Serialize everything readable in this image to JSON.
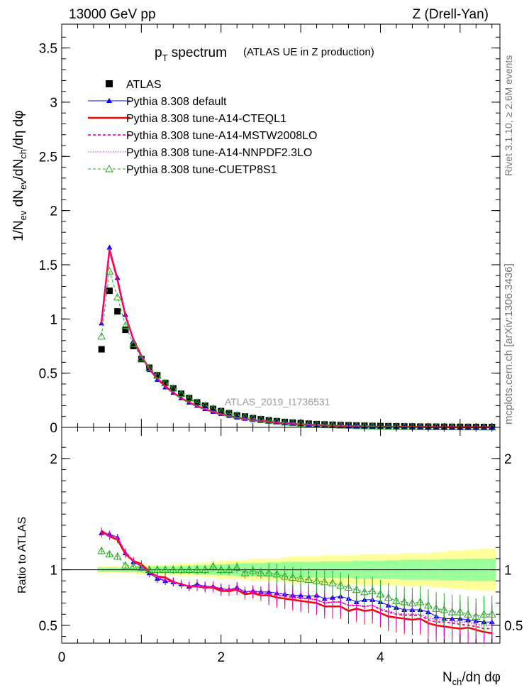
{
  "header": {
    "left": "13000 GeV pp",
    "right": "Z (Drell-Yan)"
  },
  "side_labels": {
    "rivet": "Rivet 3.1.10, ≥ 2.6M events",
    "mcplots": "mcplots.cern.ch [arXiv:1306.3436]"
  },
  "plot_title": {
    "main": "p",
    "sub": "T",
    "rest": " spectrum",
    "detail": "(ATLAS UE in Z production)"
  },
  "watermark": "ATLAS_2019_I1736531",
  "axes": {
    "ylabel_main": "1/N_ev dN_ev/dN_ch/dη dφ",
    "ylabel_ratio": "Ratio to ATLAS",
    "xlabel": "N_ch/dη dφ"
  },
  "legend": [
    {
      "label": "ATLAS",
      "color": "#000000",
      "style": "square"
    },
    {
      "label": "Pythia 8.308 default",
      "color": "#0000ff",
      "style": "triangle-line"
    },
    {
      "label": "Pythia 8.308 tune-A14-CTEQL1",
      "color": "#ff0000",
      "style": "thick-line"
    },
    {
      "label": "Pythia 8.308 tune-A14-MSTW2008LO",
      "color": "#ff00aa",
      "style": "dashed"
    },
    {
      "label": "Pythia 8.308 tune-A14-NNPDF2.3LO",
      "color": "#dd00dd",
      "style": "dotted"
    },
    {
      "label": "Pythia 8.308 tune-CUETP8S1",
      "color": "#22aa22",
      "style": "open-triangle-dashed"
    }
  ],
  "chart_data": [
    {
      "type": "scatter",
      "panel": "main",
      "xlim": [
        0,
        5.5
      ],
      "ylim": [
        0,
        3.72
      ],
      "xticks": [
        "0",
        "2",
        "4"
      ],
      "yticks": [
        "0",
        "0.5",
        "1",
        "1.5",
        "2",
        "2.5",
        "3",
        "3.5"
      ],
      "x": [
        0.5,
        0.6,
        0.7,
        0.8,
        0.9,
        1.0,
        1.1,
        1.2,
        1.3,
        1.4,
        1.5,
        1.6,
        1.7,
        1.8,
        1.9,
        2.0,
        2.1,
        2.2,
        2.3,
        2.4,
        2.5,
        2.6,
        2.7,
        2.8,
        2.9,
        3.0,
        3.1,
        3.2,
        3.3,
        3.4,
        3.5,
        3.6,
        3.7,
        3.8,
        3.9,
        4.0,
        4.1,
        4.2,
        4.3,
        4.4,
        4.5,
        4.6,
        4.7,
        4.8,
        4.9,
        5.0,
        5.1,
        5.2,
        5.3,
        5.4
      ],
      "series": [
        {
          "name": "ATLAS",
          "values": [
            0.72,
            1.26,
            1.07,
            0.9,
            0.75,
            0.63,
            0.55,
            0.48,
            0.41,
            0.36,
            0.31,
            0.27,
            0.23,
            0.2,
            0.17,
            0.15,
            0.13,
            0.11,
            0.1,
            0.085,
            0.075,
            0.065,
            0.057,
            0.05,
            0.044,
            0.039,
            0.034,
            0.03,
            0.027,
            0.024,
            0.021,
            0.019,
            0.017,
            0.015,
            0.013,
            0.012,
            0.011,
            0.01,
            0.009,
            0.008,
            0.007,
            0.0065,
            0.006,
            0.0055,
            0.005,
            0.0045,
            0.004,
            0.0037,
            0.0034,
            0.003
          ]
        },
        {
          "name": "Pythia 8.308 default",
          "values": [
            0.96,
            1.66,
            1.38,
            1.04,
            0.8,
            0.65,
            0.53,
            0.44,
            0.37,
            0.32,
            0.27,
            0.23,
            0.2,
            0.17,
            0.145,
            0.125,
            0.107,
            0.092,
            0.08,
            0.069,
            0.06,
            0.052,
            0.045,
            0.039,
            0.034,
            0.03,
            0.026,
            0.023,
            0.02,
            0.018,
            0.016,
            0.014,
            0.012,
            0.011,
            0.0095,
            0.0085,
            0.0075,
            0.0066,
            0.0058,
            0.0051,
            0.0045,
            0.004,
            0.0035,
            0.0031,
            0.0028,
            0.0025,
            0.0022,
            0.002,
            0.0018,
            0.0016
          ]
        },
        {
          "name": "Pythia 8.308 tune-A14-CTEQL1",
          "values": [
            0.97,
            1.64,
            1.36,
            1.03,
            0.81,
            0.66,
            0.54,
            0.45,
            0.38,
            0.32,
            0.27,
            0.23,
            0.195,
            0.167,
            0.143,
            0.122,
            0.105,
            0.09,
            0.078,
            0.067,
            0.058,
            0.05,
            0.043,
            0.037,
            0.032,
            0.028,
            0.024,
            0.021,
            0.018,
            0.016,
            0.014,
            0.012,
            0.011,
            0.0095,
            0.0083,
            0.0073,
            0.0064,
            0.0057,
            0.005,
            0.0044,
            0.0039,
            0.0034,
            0.003,
            0.0027,
            0.0024,
            0.0021,
            0.0019,
            0.0017,
            0.0015,
            0.0013
          ]
        },
        {
          "name": "Pythia 8.308 tune-A14-MSTW2008LO",
          "values": [
            0.95,
            1.65,
            1.37,
            1.04,
            0.81,
            0.65,
            0.54,
            0.45,
            0.37,
            0.32,
            0.27,
            0.23,
            0.196,
            0.168,
            0.144,
            0.123,
            0.106,
            0.091,
            0.079,
            0.068,
            0.059,
            0.051,
            0.044,
            0.038,
            0.033,
            0.029,
            0.025,
            0.022,
            0.019,
            0.017,
            0.015,
            0.013,
            0.0115,
            0.01,
            0.0088,
            0.0077,
            0.0068,
            0.006,
            0.0053,
            0.0047,
            0.0041,
            0.0036,
            0.0032,
            0.0029,
            0.0026,
            0.0023,
            0.002,
            0.0018,
            0.0016,
            0.0014
          ]
        },
        {
          "name": "Pythia 8.308 tune-A14-NNPDF2.3LO",
          "values": [
            0.96,
            1.66,
            1.38,
            1.04,
            0.8,
            0.65,
            0.54,
            0.45,
            0.37,
            0.32,
            0.27,
            0.23,
            0.197,
            0.169,
            0.145,
            0.124,
            0.107,
            0.092,
            0.08,
            0.069,
            0.06,
            0.052,
            0.045,
            0.039,
            0.034,
            0.029,
            0.025,
            0.022,
            0.019,
            0.017,
            0.015,
            0.013,
            0.0115,
            0.01,
            0.0089,
            0.0078,
            0.0069,
            0.0061,
            0.0054,
            0.0048,
            0.0042,
            0.0037,
            0.0033,
            0.003,
            0.0027,
            0.0024,
            0.0021,
            0.0019,
            0.0017,
            0.0015
          ]
        },
        {
          "name": "Pythia 8.308 tune-CUETP8S1",
          "values": [
            0.84,
            1.44,
            1.2,
            0.94,
            0.77,
            0.64,
            0.55,
            0.48,
            0.41,
            0.36,
            0.31,
            0.27,
            0.23,
            0.2,
            0.175,
            0.15,
            0.13,
            0.112,
            0.097,
            0.084,
            0.073,
            0.063,
            0.055,
            0.047,
            0.041,
            0.036,
            0.031,
            0.027,
            0.024,
            0.021,
            0.018,
            0.016,
            0.014,
            0.012,
            0.0105,
            0.0093,
            0.0082,
            0.0072,
            0.0064,
            0.0056,
            0.005,
            0.0044,
            0.0039,
            0.0035,
            0.0031,
            0.0028,
            0.0025,
            0.0022,
            0.002,
            0.0018
          ]
        }
      ]
    },
    {
      "type": "line",
      "panel": "ratio",
      "xlim": [
        0,
        5.5
      ],
      "ylim": [
        0.34,
        2.28
      ],
      "xticks": [
        "0",
        "2",
        "4"
      ],
      "yticks": [
        "0.5",
        "1",
        "2"
      ],
      "x": [
        0.5,
        0.6,
        0.7,
        0.8,
        0.9,
        1.0,
        1.1,
        1.2,
        1.3,
        1.4,
        1.5,
        1.6,
        1.7,
        1.8,
        1.9,
        2.0,
        2.1,
        2.2,
        2.3,
        2.4,
        2.5,
        2.6,
        2.7,
        2.8,
        2.9,
        3.0,
        3.1,
        3.2,
        3.3,
        3.4,
        3.5,
        3.6,
        3.7,
        3.8,
        3.9,
        4.0,
        4.1,
        4.2,
        4.3,
        4.4,
        4.5,
        4.6,
        4.7,
        4.8,
        4.9,
        5.0,
        5.1,
        5.2,
        5.3,
        5.4
      ],
      "band_inner": [
        0.02,
        0.02,
        0.02,
        0.02,
        0.02,
        0.025,
        0.025,
        0.03,
        0.03,
        0.03,
        0.035,
        0.035,
        0.04,
        0.04,
        0.045,
        0.05,
        0.05,
        0.055,
        0.06,
        0.06,
        0.06,
        0.065,
        0.065,
        0.07,
        0.07,
        0.07,
        0.07,
        0.07,
        0.075,
        0.075,
        0.075,
        0.075,
        0.08,
        0.08,
        0.08,
        0.08,
        0.085,
        0.085,
        0.09,
        0.09,
        0.09,
        0.09,
        0.09,
        0.095,
        0.095,
        0.095,
        0.1,
        0.1,
        0.1,
        0.1
      ],
      "band_outer": [
        0.03,
        0.03,
        0.03,
        0.03,
        0.03,
        0.04,
        0.04,
        0.045,
        0.045,
        0.05,
        0.055,
        0.055,
        0.06,
        0.065,
        0.07,
        0.08,
        0.08,
        0.085,
        0.09,
        0.1,
        0.1,
        0.1,
        0.1,
        0.11,
        0.12,
        0.12,
        0.12,
        0.12,
        0.13,
        0.13,
        0.13,
        0.13,
        0.13,
        0.14,
        0.14,
        0.14,
        0.14,
        0.14,
        0.15,
        0.15,
        0.15,
        0.15,
        0.16,
        0.16,
        0.17,
        0.17,
        0.18,
        0.18,
        0.19,
        0.19
      ],
      "series": [
        {
          "name": "Pythia 8.308 default",
          "values": [
            1.33,
            1.32,
            1.29,
            1.15,
            1.07,
            1.03,
            0.97,
            0.92,
            0.9,
            0.89,
            0.87,
            0.85,
            0.87,
            0.85,
            0.85,
            0.83,
            0.82,
            0.84,
            0.8,
            0.81,
            0.8,
            0.8,
            0.79,
            0.78,
            0.77,
            0.77,
            0.76,
            0.77,
            0.74,
            0.75,
            0.76,
            0.74,
            0.71,
            0.73,
            0.73,
            0.71,
            0.68,
            0.66,
            0.64,
            0.64,
            0.64,
            0.62,
            0.58,
            0.56,
            0.56,
            0.56,
            0.55,
            0.54,
            0.53,
            0.53
          ]
        },
        {
          "name": "Pythia 8.308 tune-A14-CTEQL1",
          "values": [
            1.35,
            1.3,
            1.27,
            1.14,
            1.08,
            1.05,
            0.98,
            0.94,
            0.93,
            0.89,
            0.87,
            0.85,
            0.85,
            0.84,
            0.84,
            0.81,
            0.81,
            0.82,
            0.78,
            0.79,
            0.77,
            0.77,
            0.75,
            0.74,
            0.73,
            0.72,
            0.71,
            0.7,
            0.67,
            0.67,
            0.67,
            0.63,
            0.65,
            0.63,
            0.64,
            0.61,
            0.58,
            0.57,
            0.56,
            0.55,
            0.56,
            0.52,
            0.5,
            0.49,
            0.48,
            0.47,
            0.48,
            0.46,
            0.44,
            0.43
          ]
        },
        {
          "name": "Pythia 8.308 tune-A14-MSTW2008LO",
          "values": [
            1.32,
            1.31,
            1.28,
            1.16,
            1.08,
            1.03,
            0.98,
            0.94,
            0.9,
            0.89,
            0.87,
            0.85,
            0.85,
            0.84,
            0.85,
            0.82,
            0.82,
            0.83,
            0.79,
            0.8,
            0.79,
            0.78,
            0.77,
            0.76,
            0.75,
            0.74,
            0.74,
            0.73,
            0.7,
            0.71,
            0.71,
            0.68,
            0.68,
            0.67,
            0.68,
            0.64,
            0.62,
            0.6,
            0.59,
            0.59,
            0.59,
            0.55,
            0.53,
            0.53,
            0.52,
            0.51,
            0.5,
            0.49,
            0.47,
            0.47
          ]
        },
        {
          "name": "Pythia 8.308 tune-A14-NNPDF2.3LO",
          "values": [
            1.33,
            1.32,
            1.29,
            1.16,
            1.07,
            1.03,
            0.98,
            0.94,
            0.9,
            0.89,
            0.87,
            0.85,
            0.86,
            0.85,
            0.85,
            0.83,
            0.82,
            0.84,
            0.8,
            0.81,
            0.8,
            0.8,
            0.79,
            0.78,
            0.77,
            0.74,
            0.74,
            0.73,
            0.7,
            0.71,
            0.71,
            0.68,
            0.68,
            0.67,
            0.68,
            0.65,
            0.63,
            0.61,
            0.6,
            0.6,
            0.6,
            0.57,
            0.55,
            0.55,
            0.54,
            0.53,
            0.53,
            0.51,
            0.5,
            0.5
          ]
        },
        {
          "name": "Pythia 8.308 tune-CUETP8S1",
          "values": [
            1.17,
            1.14,
            1.12,
            1.04,
            1.03,
            1.02,
            1.0,
            1.0,
            1.0,
            1.0,
            1.0,
            1.0,
            1.0,
            1.0,
            1.03,
            1.0,
            1.0,
            1.02,
            0.97,
            0.99,
            0.97,
            0.97,
            0.96,
            0.94,
            0.93,
            0.92,
            0.91,
            0.9,
            0.89,
            0.88,
            0.86,
            0.84,
            0.82,
            0.8,
            0.81,
            0.78,
            0.75,
            0.72,
            0.71,
            0.7,
            0.71,
            0.68,
            0.65,
            0.64,
            0.62,
            0.62,
            0.6,
            0.58,
            0.6,
            0.6
          ]
        }
      ]
    }
  ]
}
